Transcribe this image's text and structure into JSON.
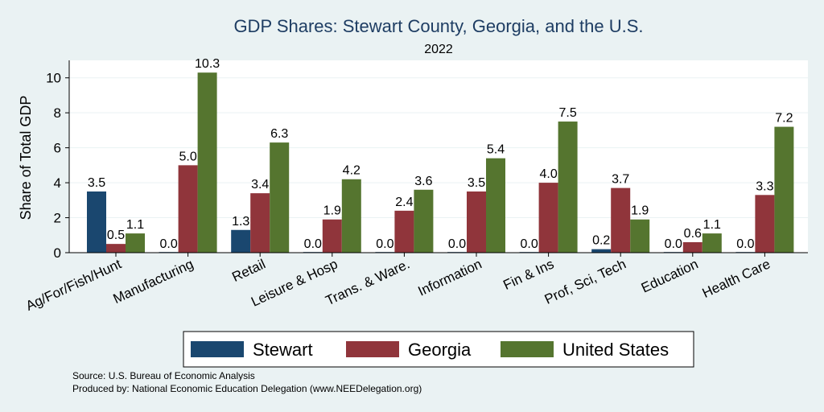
{
  "chart_data": {
    "type": "bar",
    "title": "GDP Shares: Stewart County, Georgia, and the U.S.",
    "subtitle": "2022",
    "xlabel": "",
    "ylabel": "Share of Total GDP",
    "ylim": [
      0,
      11
    ],
    "yticks": [
      0,
      2,
      4,
      6,
      8,
      10
    ],
    "grid": true,
    "legend_position": "bottom",
    "categories": [
      "Ag/For/Fish/Hunt",
      "Manufacturing",
      "Retail",
      "Leisure & Hosp",
      "Trans. & Ware.",
      "Information",
      "Fin & Ins",
      "Prof, Sci, Tech",
      "Education",
      "Health Care"
    ],
    "series": [
      {
        "name": "Stewart",
        "color": "#1a476f",
        "values": [
          3.5,
          0.0,
          1.3,
          0.0,
          0.0,
          0.0,
          0.0,
          0.2,
          0.0,
          0.0
        ]
      },
      {
        "name": "Georgia",
        "color": "#90353b",
        "values": [
          0.5,
          5.0,
          3.4,
          1.9,
          2.4,
          3.5,
          4.0,
          3.7,
          0.6,
          3.3
        ]
      },
      {
        "name": "United States",
        "color": "#55752f",
        "values": [
          1.1,
          10.3,
          6.3,
          4.2,
          3.6,
          5.4,
          7.5,
          1.9,
          1.1,
          7.2
        ]
      }
    ]
  },
  "footer": {
    "source": "Source: U.S. Bureau of Economic Analysis",
    "produced_by": "Produced by: National Economic Education Delegation (www.NEEDelegation.org)"
  }
}
